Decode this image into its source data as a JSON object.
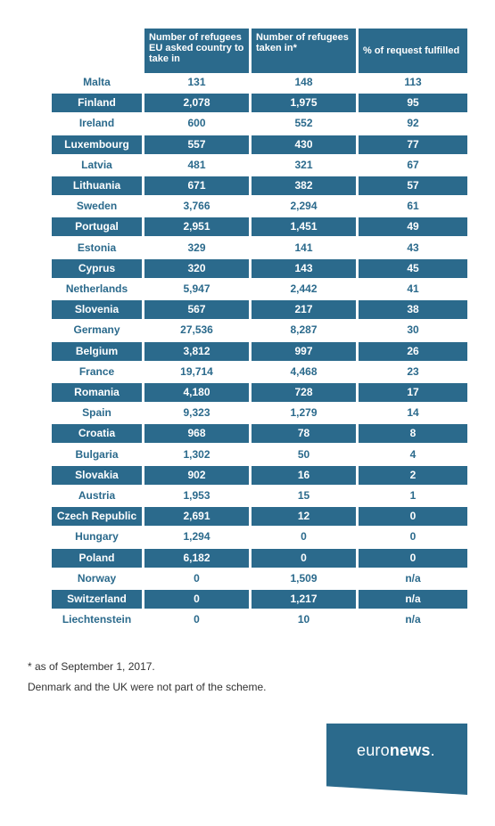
{
  "chart_data": {
    "type": "table",
    "columns": [
      "",
      "Number of refugees EU asked country to take in",
      "Number of refugees taken in*",
      "% of request fulfilled"
    ],
    "rows": [
      [
        "Malta",
        "131",
        "148",
        "113"
      ],
      [
        "Finland",
        "2,078",
        "1,975",
        "95"
      ],
      [
        "Ireland",
        "600",
        "552",
        "92"
      ],
      [
        "Luxembourg",
        "557",
        "430",
        "77"
      ],
      [
        "Latvia",
        "481",
        "321",
        "67"
      ],
      [
        "Lithuania",
        "671",
        "382",
        "57"
      ],
      [
        "Sweden",
        "3,766",
        "2,294",
        "61"
      ],
      [
        "Portugal",
        "2,951",
        "1,451",
        "49"
      ],
      [
        "Estonia",
        "329",
        "141",
        "43"
      ],
      [
        "Cyprus",
        "320",
        "143",
        "45"
      ],
      [
        "Netherlands",
        "5,947",
        "2,442",
        "41"
      ],
      [
        "Slovenia",
        "567",
        "217",
        "38"
      ],
      [
        "Germany",
        "27,536",
        "8,287",
        "30"
      ],
      [
        "Belgium",
        "3,812",
        "997",
        "26"
      ],
      [
        "France",
        "19,714",
        "4,468",
        "23"
      ],
      [
        "Romania",
        "4,180",
        "728",
        "17"
      ],
      [
        "Spain",
        "9,323",
        "1,279",
        "14"
      ],
      [
        "Croatia",
        "968",
        "78",
        "8"
      ],
      [
        "Bulgaria",
        "1,302",
        "50",
        "4"
      ],
      [
        "Slovakia",
        "902",
        "16",
        "2"
      ],
      [
        "Austria",
        "1,953",
        "15",
        "1"
      ],
      [
        "Czech Republic",
        "2,691",
        "12",
        "0"
      ],
      [
        "Hungary",
        "1,294",
        "0",
        "0"
      ],
      [
        "Poland",
        "6,182",
        "0",
        "0"
      ],
      [
        "Norway",
        "0",
        "1,509",
        "n/a"
      ],
      [
        "Switzerland",
        "0",
        "1,217",
        "n/a"
      ],
      [
        "Liechtenstein",
        "0",
        "10",
        "n/a"
      ]
    ]
  },
  "notes": {
    "line1": "* as of September 1, 2017.",
    "line2": "Denmark and the UK were not part of the scheme."
  },
  "brand": {
    "part1": "euro",
    "part2": "news",
    "dot": "."
  },
  "colors": {
    "accent": "#2b6a8c",
    "background": "#ffffff"
  }
}
